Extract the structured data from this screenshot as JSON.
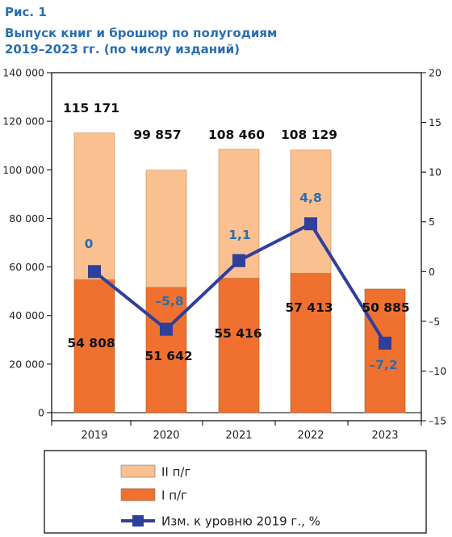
{
  "header": {
    "figure_label": "Рис. 1",
    "title_line1": "Выпуск книг и брошюр по полугодиям",
    "title_line2": "2019–2023 гг. (по числу изданий)"
  },
  "colors": {
    "h2": "#fac090",
    "h1": "#f07030",
    "line": "#2e3f9c",
    "label_blue": "#2a6db3",
    "axis": "#000000"
  },
  "chart_data": {
    "type": "bar",
    "stacked": true,
    "categories": [
      "2019",
      "2020",
      "2021",
      "2022",
      "2023"
    ],
    "series": [
      {
        "name": "I п/г",
        "values": [
          54808,
          51642,
          55416,
          57413,
          50885
        ],
        "labels": [
          "54 808",
          "51 642",
          "55 416",
          "57 413",
          "50 885"
        ]
      },
      {
        "name": "II п/г",
        "values": [
          60363,
          48215,
          53044,
          50716,
          null
        ]
      }
    ],
    "totals": [
      115171,
      99857,
      108460,
      108129,
      null
    ],
    "total_labels": [
      "115 171",
      "99 857",
      "108 460",
      "108 129",
      ""
    ],
    "line_series": {
      "name": "Изм. к уровню 2019 г., %",
      "values": [
        0,
        -5.8,
        1.1,
        4.8,
        -7.2
      ],
      "labels": [
        "0",
        "–5,8",
        "1,1",
        "4,8",
        "–7,2"
      ],
      "axis": "right"
    },
    "left_axis": {
      "ylim": [
        0,
        140000
      ],
      "ticks": [
        0,
        20000,
        40000,
        60000,
        80000,
        100000,
        120000,
        140000
      ],
      "tick_labels": [
        "0",
        "20 000",
        "40 000",
        "60 000",
        "80 000",
        "100 000",
        "120 000",
        "140 000"
      ]
    },
    "right_axis": {
      "ylim": [
        -15,
        20
      ],
      "ticks": [
        -15,
        -10,
        -5,
        0,
        5,
        10,
        15,
        20
      ],
      "tick_labels": [
        "–15",
        "–10",
        "–5",
        "0",
        "5",
        "10",
        "15",
        "20"
      ]
    },
    "legend": {
      "placement": "bottom",
      "items": [
        {
          "label": "II п/г",
          "kind": "box",
          "color": "#fac090"
        },
        {
          "label": "I п/г",
          "kind": "box",
          "color": "#f07030"
        },
        {
          "label": "Изм. к уровню 2019 г., %",
          "kind": "line",
          "color": "#2e3f9c"
        }
      ]
    },
    "grid": false
  }
}
